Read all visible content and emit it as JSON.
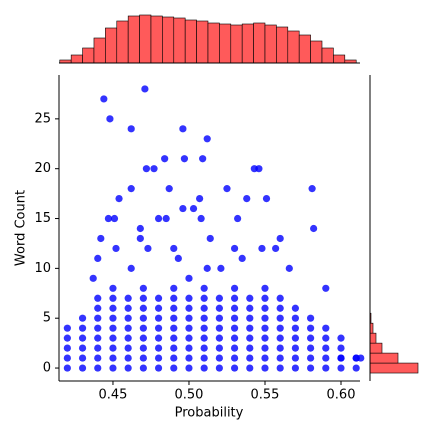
{
  "chart_data": {
    "type": "scatter",
    "x_label": "Probability",
    "y_label": "Word Count",
    "xlim": [
      0.4145,
      0.6125
    ],
    "ylim": [
      -1.3,
      29.4
    ],
    "xticks": [
      {
        "value": 0.45,
        "label": "0.45"
      },
      {
        "value": 0.5,
        "label": "0.50"
      },
      {
        "value": 0.55,
        "label": "0.55"
      },
      {
        "value": 0.6,
        "label": "0.60"
      }
    ],
    "yticks": [
      0,
      5,
      10,
      15,
      20,
      25
    ],
    "color": "#0000ff",
    "hist_color": "#ff5a5a",
    "x": [
      0.42,
      0.43,
      0.44,
      0.45,
      0.46,
      0.47,
      0.48,
      0.49,
      0.5,
      0.51,
      0.52,
      0.53,
      0.54,
      0.55,
      0.56,
      0.57,
      0.58,
      0.59,
      0.6,
      0.61,
      0.42,
      0.43,
      0.44,
      0.45,
      0.46,
      0.47,
      0.48,
      0.49,
      0.5,
      0.51,
      0.52,
      0.53,
      0.54,
      0.55,
      0.56,
      0.57,
      0.58,
      0.59,
      0.6,
      0.61,
      0.42,
      0.43,
      0.44,
      0.45,
      0.46,
      0.47,
      0.48,
      0.49,
      0.5,
      0.51,
      0.52,
      0.53,
      0.54,
      0.55,
      0.56,
      0.57,
      0.58,
      0.59,
      0.6,
      0.42,
      0.43,
      0.44,
      0.45,
      0.46,
      0.47,
      0.48,
      0.49,
      0.5,
      0.51,
      0.52,
      0.53,
      0.54,
      0.55,
      0.56,
      0.57,
      0.58,
      0.59,
      0.6,
      0.42,
      0.43,
      0.44,
      0.45,
      0.46,
      0.47,
      0.48,
      0.49,
      0.5,
      0.51,
      0.52,
      0.53,
      0.54,
      0.55,
      0.56,
      0.57,
      0.58,
      0.59,
      0.43,
      0.44,
      0.45,
      0.46,
      0.47,
      0.48,
      0.49,
      0.5,
      0.51,
      0.52,
      0.53,
      0.54,
      0.55,
      0.56,
      0.57,
      0.58,
      0.44,
      0.45,
      0.46,
      0.47,
      0.48,
      0.49,
      0.5,
      0.51,
      0.52,
      0.53,
      0.54,
      0.55,
      0.56,
      0.57,
      0.44,
      0.45,
      0.46,
      0.47,
      0.48,
      0.49,
      0.5,
      0.51,
      0.52,
      0.53,
      0.54,
      0.55,
      0.56,
      0.45,
      0.47,
      0.49,
      0.51,
      0.53,
      0.55,
      0.444,
      0.471,
      0.448,
      0.462,
      0.496,
      0.512,
      0.497,
      0.509,
      0.484,
      0.472,
      0.477,
      0.543,
      0.546,
      0.581,
      0.462,
      0.487,
      0.525,
      0.538,
      0.551,
      0.454,
      0.507,
      0.451,
      0.447,
      0.48,
      0.485,
      0.496,
      0.503,
      0.508,
      0.532,
      0.468,
      0.582,
      0.468,
      0.442,
      0.514,
      0.56,
      0.452,
      0.473,
      0.49,
      0.53,
      0.548,
      0.557,
      0.44,
      0.493,
      0.512,
      0.535,
      0.566,
      0.462,
      0.437,
      0.5,
      0.521,
      0.59,
      0.6,
      0.61,
      0.613
    ],
    "y": [
      0,
      0,
      0,
      0,
      0,
      0,
      0,
      0,
      0,
      0,
      0,
      0,
      0,
      0,
      0,
      0,
      0,
      0,
      0,
      0,
      1,
      1,
      1,
      1,
      1,
      1,
      1,
      1,
      1,
      1,
      1,
      1,
      1,
      1,
      1,
      1,
      1,
      1,
      1,
      1,
      2,
      2,
      2,
      2,
      2,
      2,
      2,
      2,
      2,
      2,
      2,
      2,
      2,
      2,
      2,
      2,
      2,
      2,
      2,
      3,
      3,
      3,
      3,
      3,
      3,
      3,
      3,
      3,
      3,
      3,
      3,
      3,
      3,
      3,
      3,
      3,
      3,
      3,
      4,
      4,
      4,
      4,
      4,
      4,
      4,
      4,
      4,
      4,
      4,
      4,
      4,
      4,
      4,
      4,
      4,
      4,
      5,
      5,
      5,
      5,
      5,
      5,
      5,
      5,
      5,
      5,
      5,
      5,
      5,
      5,
      5,
      5,
      6,
      6,
      6,
      6,
      6,
      6,
      6,
      6,
      6,
      6,
      6,
      6,
      6,
      6,
      7,
      7,
      7,
      7,
      7,
      7,
      7,
      7,
      7,
      7,
      7,
      7,
      7,
      8,
      8,
      8,
      8,
      8,
      8,
      27,
      28,
      25,
      24,
      24,
      23,
      21,
      21,
      21,
      20,
      20,
      20,
      20,
      18,
      18,
      18,
      18,
      17,
      17,
      17,
      17,
      15,
      15,
      15,
      15,
      16,
      16,
      15,
      15,
      14,
      14,
      13,
      13,
      13,
      13,
      12,
      12,
      12,
      12,
      12,
      12,
      11,
      11,
      10,
      11,
      10,
      10,
      9,
      9,
      10,
      8,
      1,
      1,
      1
    ],
    "top_hist": {
      "bins": [
        0.415,
        0.4225,
        0.43,
        0.4375,
        0.445,
        0.4525,
        0.46,
        0.4675,
        0.475,
        0.4825,
        0.49,
        0.4975,
        0.505,
        0.5125,
        0.52,
        0.5275,
        0.535,
        0.5425,
        0.55,
        0.5575,
        0.565,
        0.5725,
        0.58,
        0.5875,
        0.595,
        0.6025,
        0.61
      ],
      "counts": [
        3,
        8,
        15,
        25,
        35,
        42,
        47,
        48,
        47,
        46,
        45,
        43,
        42,
        40,
        39,
        38,
        39,
        40,
        38,
        36,
        32,
        28,
        22,
        15,
        8,
        3
      ]
    },
    "right_hist": {
      "bins": [
        -0.5,
        0.5,
        1.5,
        2.5,
        3.5,
        4.5,
        5.5
      ],
      "counts": [
        48,
        28,
        12,
        6,
        3,
        1
      ]
    }
  }
}
